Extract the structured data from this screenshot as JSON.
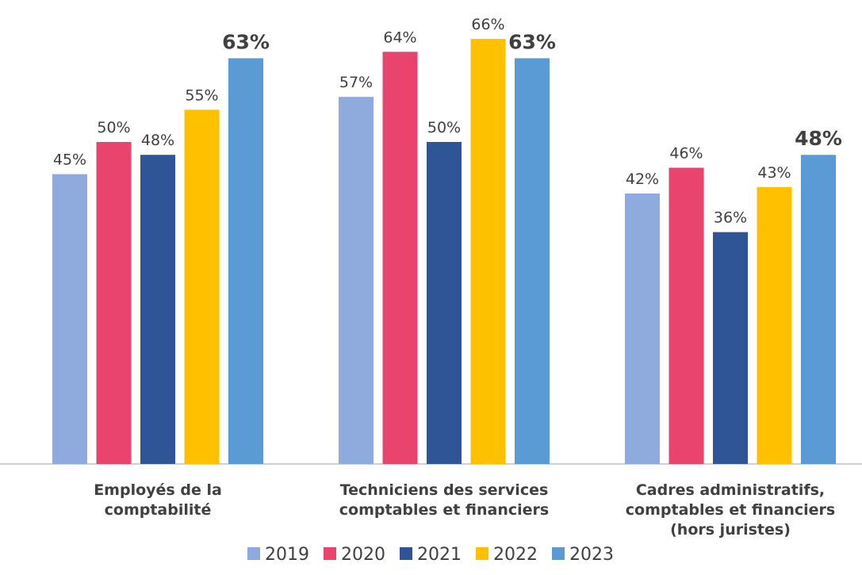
{
  "chart_data": {
    "type": "bar",
    "categories": [
      "Employés de la\ncomptabilité",
      "Techniciens des services\ncomptables et financiers",
      "Cadres administratifs,\ncomptables et financiers\n(hors juristes)"
    ],
    "series": [
      {
        "name": "2019",
        "color": "#8faadc",
        "values": [
          45,
          57,
          42
        ],
        "value_labels": [
          "45%",
          "57%",
          "42%"
        ]
      },
      {
        "name": "2020",
        "color": "#e8446e",
        "values": [
          50,
          64,
          46
        ],
        "value_labels": [
          "50%",
          "64%",
          "46%"
        ]
      },
      {
        "name": "2021",
        "color": "#2f5597",
        "values": [
          48,
          50,
          36
        ],
        "value_labels": [
          "48%",
          "50%",
          "36%"
        ]
      },
      {
        "name": "2022",
        "color": "#ffc000",
        "values": [
          55,
          66,
          43
        ],
        "value_labels": [
          "55%",
          "66%",
          "43%"
        ]
      },
      {
        "name": "2023",
        "color": "#5b9bd5",
        "values": [
          63,
          63,
          48
        ],
        "value_labels": [
          "63%",
          "63%",
          "48%"
        ],
        "bold_labels": true
      }
    ],
    "legend": "bottom"
  }
}
